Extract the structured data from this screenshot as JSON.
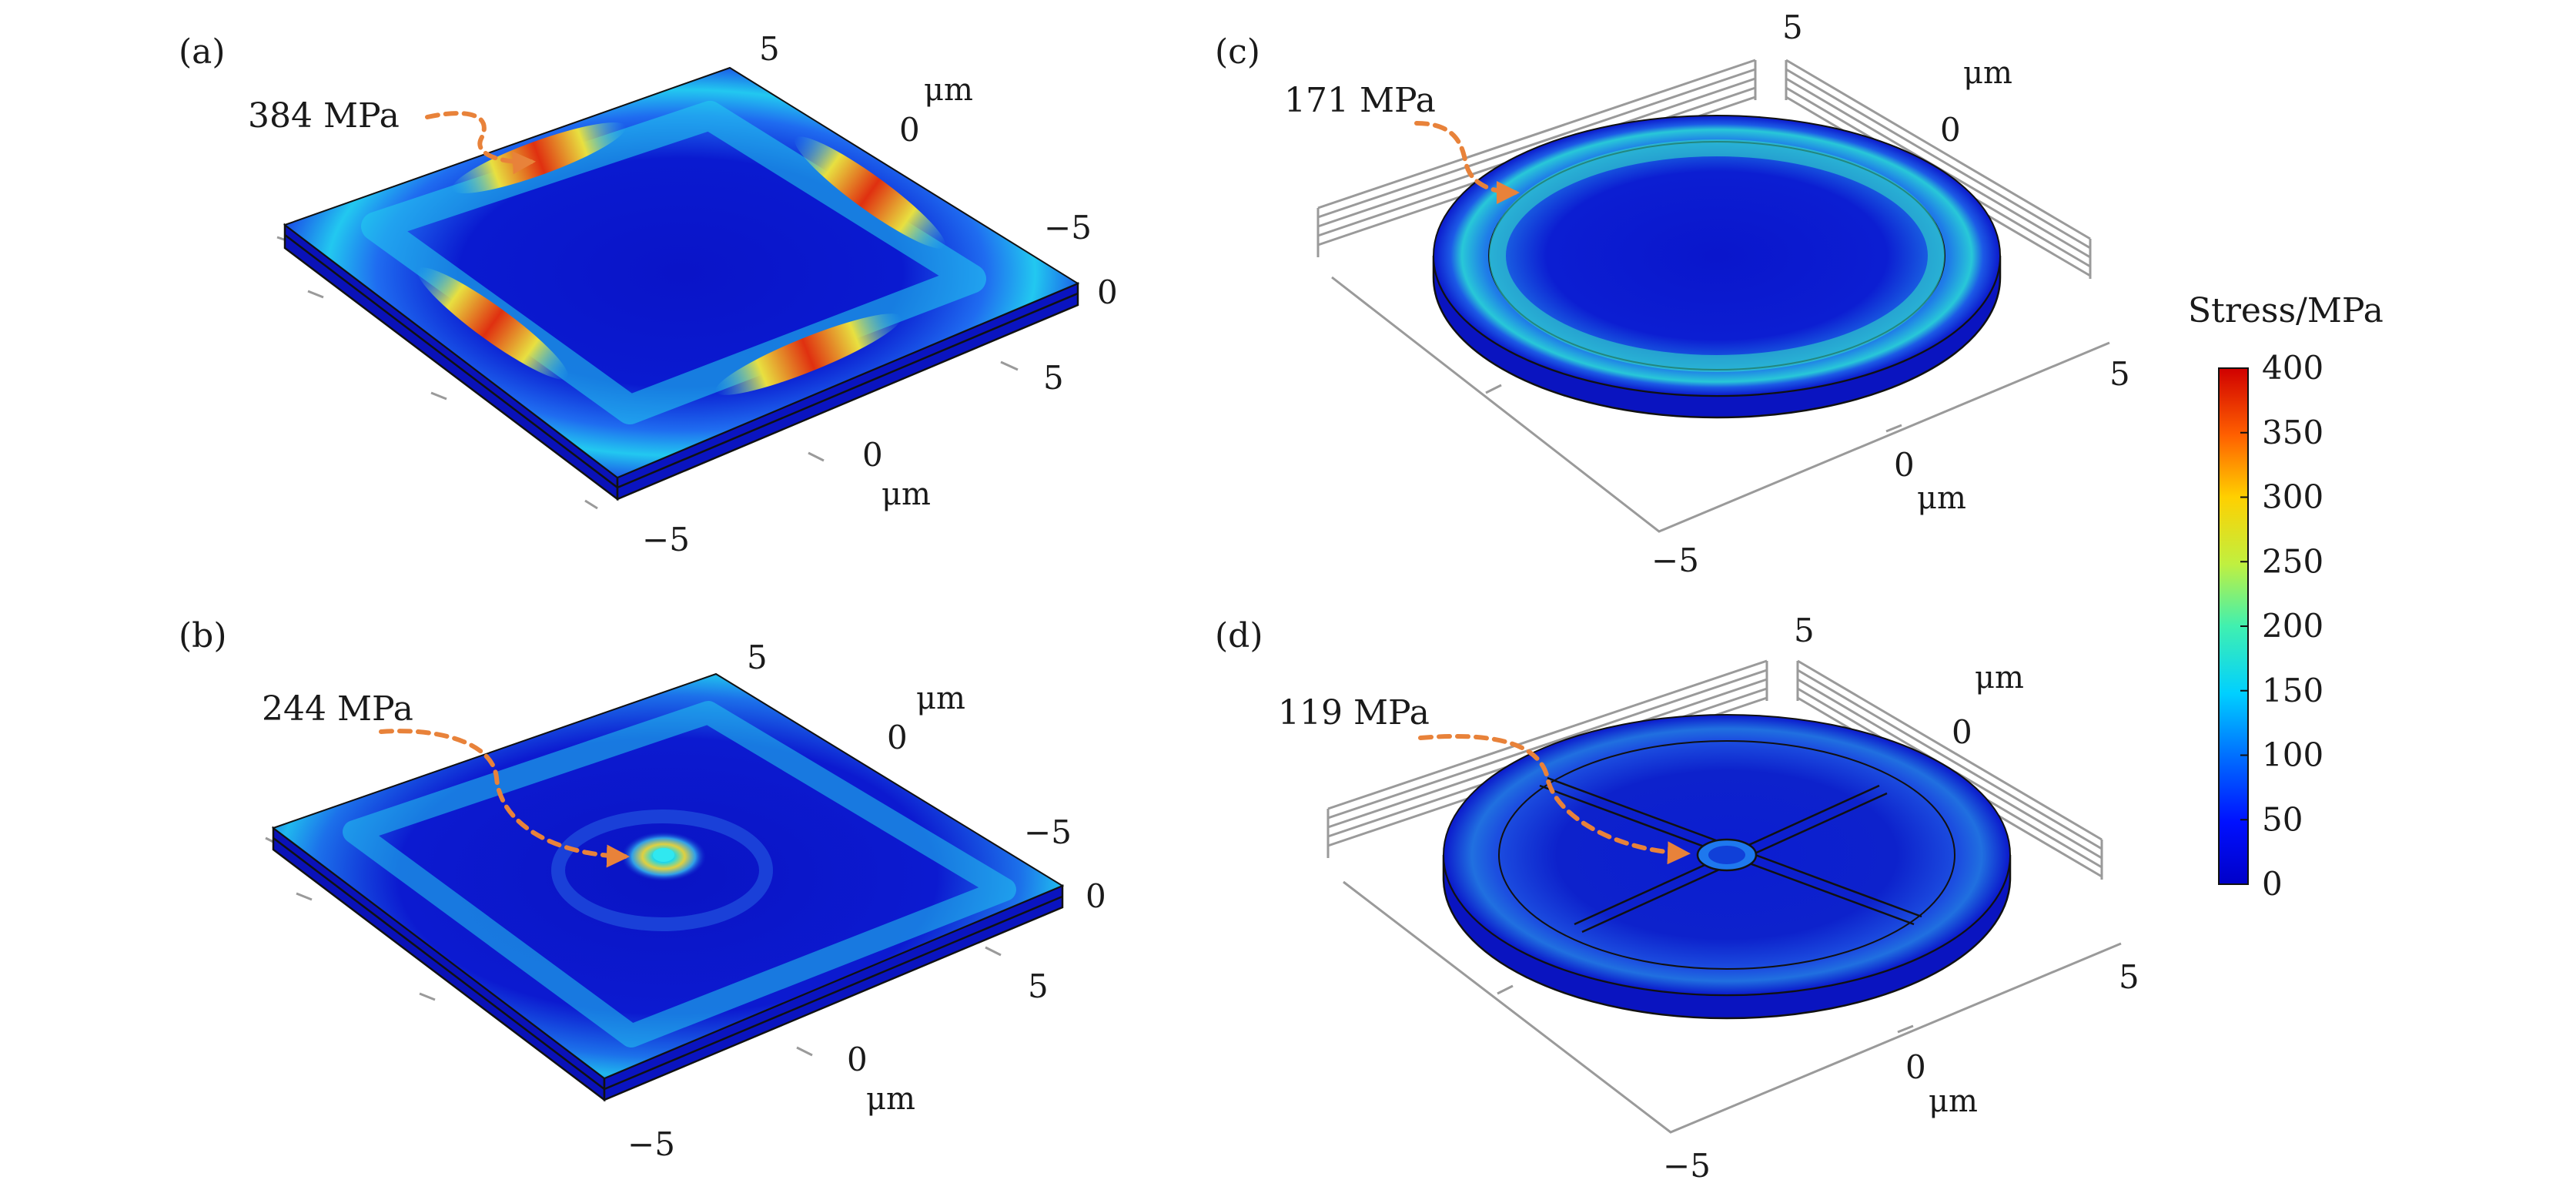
{
  "panels": {
    "a": {
      "label": "(a)",
      "annotation": "384 MPa",
      "ticks": {
        "y_top": "5",
        "y_mid": "0",
        "y_low": "−5",
        "z": "0",
        "x_right": "5",
        "x_mid": "0",
        "x_low": "−5"
      },
      "unit_y": "μm",
      "unit_x": "μm"
    },
    "b": {
      "label": "(b)",
      "annotation": "244 MPa",
      "ticks": {
        "y_top": "5",
        "y_mid": "0",
        "y_low": "−5",
        "z": "0",
        "x_right": "5",
        "x_mid": "0",
        "x_low": "−5"
      },
      "unit_y": "μm",
      "unit_x": "μm"
    },
    "c": {
      "label": "(c)",
      "annotation": "171 MPa",
      "ticks": {
        "y_top": "5",
        "y_mid": "0",
        "x_right": "5",
        "x_mid": "0",
        "x_low": "−5"
      },
      "unit_y": "μm",
      "unit_x": "μm"
    },
    "d": {
      "label": "(d)",
      "annotation": "119 MPa",
      "ticks": {
        "y_top": "5",
        "y_mid": "0",
        "x_right": "5",
        "x_mid": "0",
        "x_low": "−5"
      },
      "unit_y": "μm",
      "unit_x": "μm"
    }
  },
  "colorbar": {
    "title": "Stress/MPa",
    "ticks": [
      "400",
      "350",
      "300",
      "250",
      "200",
      "150",
      "100",
      "50",
      "0"
    ],
    "min": 0,
    "max": 400,
    "colormap": "jet"
  }
}
